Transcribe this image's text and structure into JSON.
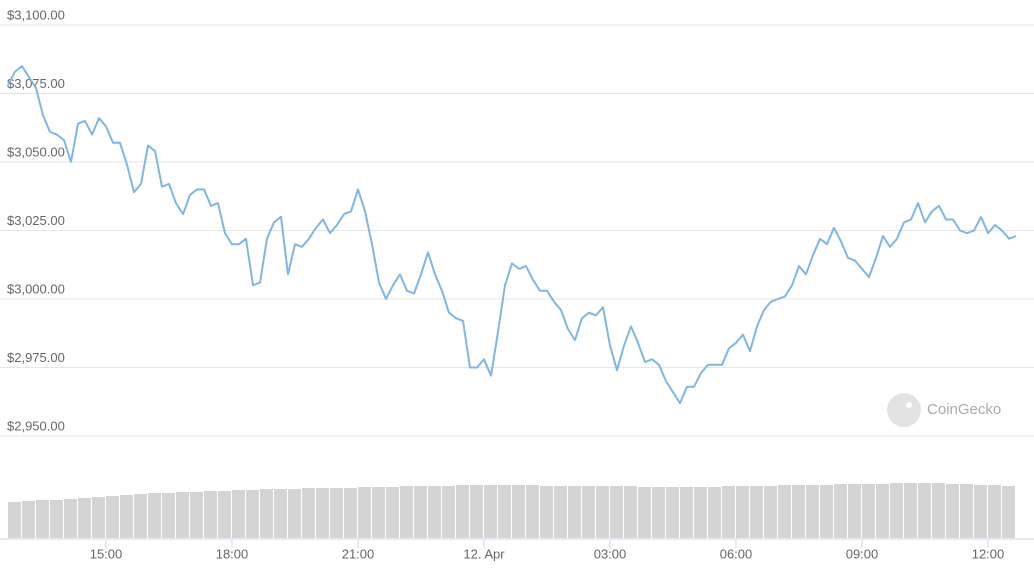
{
  "chart_data": {
    "type": "line",
    "x": [
      760,
      770,
      780,
      790,
      800,
      810,
      820,
      830,
      840,
      850,
      860,
      870,
      880,
      890,
      900,
      910,
      920,
      930,
      940,
      950,
      960,
      970,
      980,
      990,
      1000,
      1010,
      1020,
      1030,
      1040,
      1050,
      1060,
      1070,
      1080,
      1090,
      1100,
      1110,
      1120,
      1130,
      1140,
      1150,
      1160,
      1170,
      1180,
      1190,
      1200,
      1210,
      1220,
      1230,
      1240,
      1250,
      1260,
      1270,
      1280,
      1290,
      1300,
      1310,
      1320,
      1330,
      1340,
      1350,
      1360,
      1370,
      1380,
      1390,
      1400,
      1410,
      1420,
      1430,
      1440,
      1450,
      1460,
      1470,
      1480,
      1490,
      1500,
      1510,
      1520,
      1530,
      1540,
      1550,
      1560,
      1570,
      1580,
      1590,
      1600,
      1610,
      1620,
      1630,
      1640,
      1650,
      1660,
      1670,
      1680,
      1690,
      1700,
      1710,
      1720,
      1730,
      1740,
      1750,
      1760,
      1770,
      1780,
      1790,
      1800,
      1810,
      1820,
      1830,
      1840,
      1850,
      1860,
      1870,
      1880,
      1890,
      1900,
      1910,
      1920,
      1930,
      1940,
      1950,
      1960,
      1970,
      1980,
      1990,
      2000,
      2010,
      2020,
      2030,
      2040,
      2050,
      2060,
      2070,
      2080,
      2090,
      2100,
      2110,
      2120,
      2130,
      2140,
      2150,
      2160,
      2170,
      2180,
      2190,
      2200
    ],
    "series": [
      {
        "color": "#7fb6e6",
        "values": [
          3078,
          3083,
          3085,
          3081,
          3077,
          3067,
          3061,
          3060,
          3058,
          3050,
          3064,
          3065,
          3060,
          3066,
          3063,
          3057,
          3057,
          3049,
          3039,
          3042,
          3056,
          3054,
          3041,
          3042,
          3035,
          3031,
          3038,
          3040,
          3040,
          3034,
          3035,
          3024,
          3020,
          3020,
          3022,
          3005,
          3006,
          3022,
          3028,
          3030,
          3009,
          3020,
          3019,
          3022,
          3026,
          3029,
          3024,
          3027,
          3031,
          3032,
          3040,
          3032,
          3020,
          3006,
          3000,
          3005,
          3009,
          3003,
          3002,
          3009,
          3017,
          3009,
          3003,
          2995,
          2993,
          2992,
          2975,
          2975,
          2978,
          2972,
          2988,
          3005,
          3013,
          3011,
          3012,
          3007,
          3003,
          3003,
          2999,
          2996,
          2989,
          2985,
          2993,
          2995,
          2994,
          2997,
          2983,
          2974,
          2983,
          2990,
          2984,
          2977,
          2978,
          2976,
          2970,
          2966,
          2962,
          2968,
          2968,
          2973,
          2976,
          2976,
          2976,
          2982,
          2984,
          2987,
          2981,
          2990,
          2996,
          2999,
          3000,
          3001,
          3005,
          3012,
          3009,
          3016,
          3022,
          3020,
          3026,
          3021,
          3015,
          3014,
          3011,
          3008,
          3015,
          3023,
          3019,
          3022,
          3028,
          3029,
          3035,
          3028,
          3032,
          3034,
          3029,
          3029,
          3025,
          3024,
          3025,
          3030,
          3024,
          3027,
          3025,
          3022,
          3023
        ]
      }
    ],
    "volume": {
      "color": "#d4d4d4",
      "values": [
        36,
        37,
        38,
        38,
        39,
        40,
        41,
        42,
        43,
        44,
        45,
        45,
        46,
        46,
        47,
        47,
        48,
        48,
        49,
        49,
        49,
        50,
        50,
        50,
        50,
        51,
        51,
        51,
        52,
        52,
        52,
        52,
        53,
        53,
        53,
        53,
        53,
        53,
        52,
        52,
        52,
        52,
        52,
        52,
        52,
        51,
        51,
        51,
        51,
        51,
        51,
        52,
        52,
        52,
        52,
        53,
        53,
        53,
        53,
        54,
        54,
        54,
        54,
        55,
        55,
        55,
        55,
        54,
        54,
        53,
        53,
        52
      ]
    },
    "xlim": [
      760,
      2200
    ],
    "xticks": [
      {
        "value": 900,
        "label": "15:00"
      },
      {
        "value": 1080,
        "label": "18:00"
      },
      {
        "value": 1260,
        "label": "21:00"
      },
      {
        "value": 1440,
        "label": "12. Apr"
      },
      {
        "value": 1620,
        "label": "03:00"
      },
      {
        "value": 1800,
        "label": "06:00"
      },
      {
        "value": 1980,
        "label": "09:00"
      },
      {
        "value": 2160,
        "label": "12:00"
      }
    ],
    "ylim": [
      2950,
      3100
    ],
    "yticks": [
      {
        "value": 2950,
        "label": "$2,950.00"
      },
      {
        "value": 2975,
        "label": "$2,975.00"
      },
      {
        "value": 3000,
        "label": "$3,000.00"
      },
      {
        "value": 3025,
        "label": "$3,025.00"
      },
      {
        "value": 3050,
        "label": "$3,050.00"
      },
      {
        "value": 3075,
        "label": "$3,075.00"
      },
      {
        "value": 3100,
        "label": "$3,100.00"
      }
    ],
    "y2lim": [
      0,
      55
    ],
    "grid": true,
    "watermark": "CoinGecko"
  }
}
